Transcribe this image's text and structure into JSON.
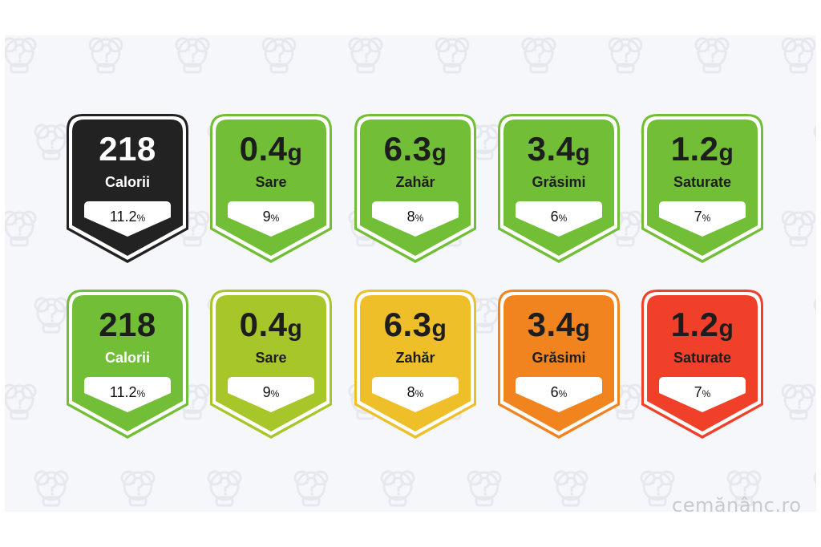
{
  "rows": [
    {
      "labels": [
        {
          "value": "218",
          "unit": "",
          "name": "Calorii",
          "percent": "11.2",
          "percent_sign": "%",
          "fill": "#222222",
          "text_color": "#ffffff",
          "name_color": "#ffffff",
          "border": "#222222"
        },
        {
          "value": "0.4",
          "unit": "g",
          "name": "Sare",
          "percent": "9",
          "percent_sign": "%",
          "fill": "#72bf37",
          "text_color": "#1d1d1d",
          "name_color": "#1d1d1d",
          "border": "#72bf37"
        },
        {
          "value": "6.3",
          "unit": "g",
          "name": "Zahăr",
          "percent": "8",
          "percent_sign": "%",
          "fill": "#72bf37",
          "text_color": "#1d1d1d",
          "name_color": "#1d1d1d",
          "border": "#72bf37"
        },
        {
          "value": "3.4",
          "unit": "g",
          "name": "Grăsimi",
          "percent": "6",
          "percent_sign": "%",
          "fill": "#72bf37",
          "text_color": "#1d1d1d",
          "name_color": "#1d1d1d",
          "border": "#72bf37"
        },
        {
          "value": "1.2",
          "unit": "g",
          "name": "Saturate",
          "percent": "7",
          "percent_sign": "%",
          "fill": "#72bf37",
          "text_color": "#1d1d1d",
          "name_color": "#1d1d1d",
          "border": "#72bf37"
        }
      ]
    },
    {
      "labels": [
        {
          "value": "218",
          "unit": "",
          "name": "Calorii",
          "percent": "11.2",
          "percent_sign": "%",
          "fill": "#72bf37",
          "text_color": "#1d1d1d",
          "name_color": "#ffffff",
          "border": "#72bf37"
        },
        {
          "value": "0.4",
          "unit": "g",
          "name": "Sare",
          "percent": "9",
          "percent_sign": "%",
          "fill": "#a7c62a",
          "text_color": "#1d1d1d",
          "name_color": "#1d1d1d",
          "border": "#a7c62a"
        },
        {
          "value": "6.3",
          "unit": "g",
          "name": "Zahăr",
          "percent": "8",
          "percent_sign": "%",
          "fill": "#efbf2a",
          "text_color": "#1d1d1d",
          "name_color": "#1d1d1d",
          "border": "#efbf2a"
        },
        {
          "value": "3.4",
          "unit": "g",
          "name": "Grăsimi",
          "percent": "6",
          "percent_sign": "%",
          "fill": "#f2841f",
          "text_color": "#1d1d1d",
          "name_color": "#1d1d1d",
          "border": "#f2841f"
        },
        {
          "value": "1.2",
          "unit": "g",
          "name": "Saturate",
          "percent": "7",
          "percent_sign": "%",
          "fill": "#f0402a",
          "text_color": "#1d1d1d",
          "name_color": "#1d1d1d",
          "border": "#f0402a"
        }
      ]
    }
  ],
  "brand": "cemănânc.ro",
  "colors": {
    "background": "#f6f7fb",
    "pattern": "#e7e8ee",
    "pill": "#ffffff"
  }
}
